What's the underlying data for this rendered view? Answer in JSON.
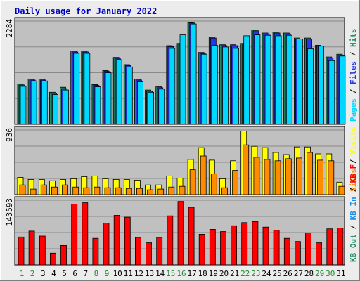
{
  "title": "Daily usage for January 2022",
  "colors": {
    "background": "#ececec",
    "plot_bg": "#c0c0c0",
    "title": "#0000c0",
    "hits": "#1f8c63",
    "files": "#2538e3",
    "pages": "#00d8ff",
    "visits": "#ffff00",
    "sites": "#ff8c00",
    "kbin": "#1f8ce3",
    "kbout": "#1f8c63",
    "kbf": "#ff0000",
    "weekday_label": "#000000",
    "weekend_label": "#1f8c33"
  },
  "chart_data": [
    {
      "type": "bar",
      "panel": "hits-files-pages",
      "categories": [
        "1",
        "2",
        "3",
        "4",
        "5",
        "6",
        "7",
        "8",
        "9",
        "10",
        "11",
        "12",
        "13",
        "14",
        "15",
        "16",
        "17",
        "18",
        "19",
        "20",
        "21",
        "22",
        "23",
        "24",
        "25",
        "26",
        "27",
        "28",
        "29",
        "30",
        "31"
      ],
      "weekend_days": [
        1,
        2,
        8,
        9,
        15,
        16,
        22,
        23,
        29,
        30
      ],
      "ymax_label": "2284",
      "ylim": [
        0,
        2284
      ],
      "axis_labels": [
        "Hits",
        "Files",
        "Pages"
      ],
      "series": [
        {
          "name": "Hits",
          "values": [
            890,
            1000,
            1000,
            710,
            820,
            1620,
            1620,
            880,
            1190,
            1480,
            1320,
            1000,
            760,
            830,
            1740,
            1790,
            2250,
            1590,
            1930,
            1760,
            1760,
            1790,
            2090,
            2020,
            2040,
            2020,
            1910,
            1910,
            1750,
            1490,
            1550
          ]
        },
        {
          "name": "Files",
          "values": [
            870,
            980,
            980,
            690,
            790,
            1600,
            1600,
            860,
            1170,
            1460,
            1300,
            980,
            740,
            810,
            1720,
            1770,
            2240,
            1570,
            1910,
            1740,
            1740,
            1770,
            2070,
            2000,
            2020,
            2000,
            1890,
            1890,
            1730,
            1470,
            1530
          ]
        },
        {
          "name": "Pages",
          "values": [
            840,
            960,
            960,
            660,
            760,
            1570,
            1570,
            830,
            1140,
            1430,
            1270,
            940,
            710,
            780,
            1680,
            1980,
            2220,
            1550,
            1750,
            1710,
            1680,
            1960,
            1980,
            1970,
            1960,
            1970,
            1890,
            1670,
            1730,
            1410,
            1510
          ]
        }
      ]
    },
    {
      "type": "bar",
      "panel": "visits-sites",
      "categories": [
        "1",
        "2",
        "3",
        "4",
        "5",
        "6",
        "7",
        "8",
        "9",
        "10",
        "11",
        "12",
        "13",
        "14",
        "15",
        "16",
        "17",
        "18",
        "19",
        "20",
        "21",
        "22",
        "23",
        "24",
        "25",
        "26",
        "27",
        "28",
        "29",
        "30",
        "31"
      ],
      "ymax_label": "936",
      "ylim": [
        0,
        936
      ],
      "axis_labels": [
        "Visits",
        "Sites"
      ],
      "series": [
        {
          "name": "Visits",
          "values": [
            250,
            220,
            220,
            200,
            220,
            230,
            260,
            270,
            230,
            220,
            220,
            210,
            140,
            140,
            270,
            240,
            510,
            680,
            500,
            230,
            490,
            920,
            700,
            680,
            610,
            580,
            690,
            690,
            590,
            590,
            180
          ]
        },
        {
          "name": "Sites",
          "values": [
            140,
            80,
            140,
            110,
            140,
            110,
            100,
            110,
            100,
            100,
            90,
            90,
            70,
            80,
            110,
            120,
            360,
            560,
            300,
            100,
            350,
            720,
            540,
            510,
            490,
            520,
            530,
            610,
            500,
            490,
            120
          ]
        }
      ]
    },
    {
      "type": "bar",
      "panel": "kbytes",
      "categories": [
        "1",
        "2",
        "3",
        "4",
        "5",
        "6",
        "7",
        "8",
        "9",
        "10",
        "11",
        "12",
        "13",
        "14",
        "15",
        "16",
        "17",
        "18",
        "19",
        "20",
        "21",
        "22",
        "23",
        "24",
        "25",
        "26",
        "27",
        "28",
        "29",
        "30",
        "31"
      ],
      "ymax_label": "143593",
      "ylim": [
        0,
        143593
      ],
      "axis_labels": [
        "KB F",
        "KB In",
        "KB Out"
      ],
      "series": [
        {
          "name": "KB F",
          "values": [
            62000,
            75000,
            64000,
            26000,
            43000,
            135000,
            138000,
            59000,
            93000,
            110000,
            106000,
            61000,
            49000,
            61000,
            109000,
            141000,
            128000,
            68000,
            79000,
            74000,
            87000,
            94000,
            96000,
            84000,
            77000,
            59000,
            52000,
            71000,
            49000,
            80000,
            82000
          ]
        }
      ]
    }
  ]
}
